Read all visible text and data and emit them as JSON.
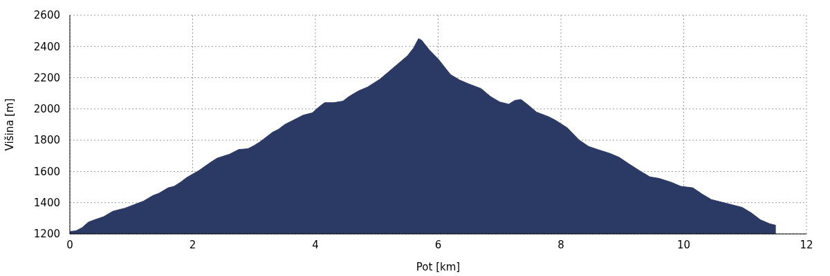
{
  "chart_data": {
    "type": "area",
    "xlabel": "Pot [km]",
    "ylabel": "Višina [m]",
    "x": [
      0,
      0.1,
      0.2,
      0.3,
      0.4,
      0.55,
      0.7,
      0.9,
      1.1,
      1.2,
      1.35,
      1.45,
      1.6,
      1.7,
      1.8,
      1.9,
      2.1,
      2.3,
      2.4,
      2.6,
      2.75,
      2.9,
      3.0,
      3.1,
      3.3,
      3.4,
      3.5,
      3.7,
      3.8,
      3.95,
      4.05,
      4.15,
      4.3,
      4.45,
      4.55,
      4.7,
      4.85,
      4.95,
      5.05,
      5.2,
      5.35,
      5.5,
      5.6,
      5.68,
      5.73,
      5.85,
      6.0,
      6.1,
      6.2,
      6.35,
      6.5,
      6.7,
      6.85,
      7.0,
      7.15,
      7.25,
      7.35,
      7.45,
      7.6,
      7.8,
      7.9,
      8.1,
      8.3,
      8.45,
      8.6,
      8.8,
      8.95,
      9.1,
      9.3,
      9.45,
      9.6,
      9.8,
      9.95,
      10.15,
      10.3,
      10.45,
      10.7,
      10.95,
      11.1,
      11.25,
      11.4,
      11.5
    ],
    "series": [
      {
        "color": "#2b3a64",
        "values": [
          1215,
          1220,
          1240,
          1275,
          1290,
          1310,
          1345,
          1365,
          1395,
          1410,
          1445,
          1460,
          1495,
          1505,
          1530,
          1560,
          1605,
          1660,
          1685,
          1710,
          1740,
          1745,
          1765,
          1790,
          1850,
          1870,
          1900,
          1940,
          1960,
          1975,
          2010,
          2040,
          2040,
          2050,
          2080,
          2115,
          2140,
          2165,
          2190,
          2240,
          2290,
          2340,
          2390,
          2450,
          2440,
          2380,
          2320,
          2270,
          2220,
          2185,
          2160,
          2130,
          2080,
          2045,
          2030,
          2055,
          2060,
          2030,
          1980,
          1950,
          1930,
          1880,
          1800,
          1760,
          1740,
          1715,
          1690,
          1650,
          1600,
          1565,
          1555,
          1530,
          1505,
          1495,
          1455,
          1420,
          1395,
          1370,
          1335,
          1290,
          1265,
          1255
        ]
      }
    ],
    "xlim": [
      0,
      12
    ],
    "xticks": [
      0,
      2,
      4,
      6,
      8,
      10,
      12
    ],
    "ylim": [
      1200,
      2600
    ],
    "yticks": [
      1200,
      1400,
      1600,
      1800,
      2000,
      2200,
      2400,
      2600
    ],
    "grid": true,
    "legend": false
  }
}
